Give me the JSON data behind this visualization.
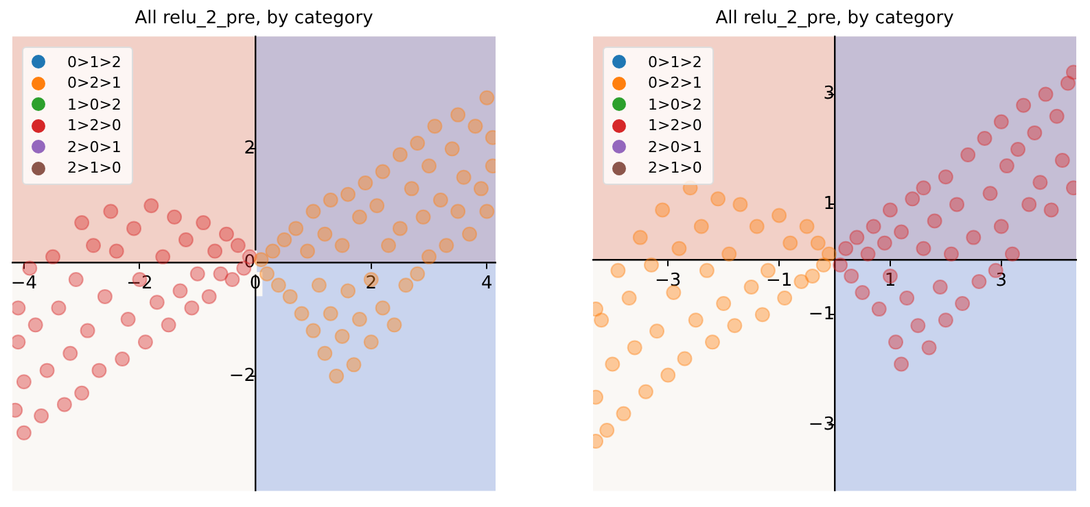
{
  "chart_data": [
    {
      "type": "scatter",
      "title": "All relu_2_pre, by category",
      "legend": "top left",
      "marker": "circle",
      "grid": false,
      "xlim": [
        -4.2,
        4.15
      ],
      "ylim": [
        -4.02,
        3.98
      ],
      "xticks": [
        {
          "value": -4,
          "label": "−4"
        },
        {
          "value": -2,
          "label": "−2"
        },
        0,
        2,
        4
      ],
      "yticks": [
        {
          "value": -2,
          "label": "−2"
        },
        0,
        2
      ],
      "bands": [
        {
          "axis": "y",
          "from": 0,
          "to": 3.98,
          "color": "#e8a090"
        },
        {
          "axis": "x",
          "from": 0,
          "to": 4.15,
          "color": "#8fa9e6"
        }
      ],
      "series": [
        {
          "name": "0>1>2",
          "color": "#1f77b4"
        },
        {
          "name": "0>2>1",
          "color": "#ff7f0e",
          "x": [
            0.1,
            0.2,
            0.3,
            0.4,
            0.5,
            0.6,
            0.7,
            0.8,
            0.9,
            1.0,
            1.0,
            1.1,
            1.2,
            1.2,
            1.3,
            1.3,
            1.4,
            1.5,
            1.5,
            1.6,
            1.6,
            1.7,
            1.8,
            1.8,
            1.9,
            2.0,
            2.0,
            2.1,
            2.2,
            2.2,
            2.3,
            2.4,
            2.5,
            2.5,
            2.6,
            2.7,
            2.8,
            2.8,
            2.9,
            3.0,
            3.0,
            3.1,
            3.2,
            3.3,
            3.4,
            3.5,
            3.5,
            3.6,
            3.7,
            3.8,
            3.9,
            4.0,
            4.0,
            4.1,
            4.1
          ],
          "values": [
            0.05,
            -0.2,
            0.2,
            -0.4,
            0.4,
            -0.6,
            0.6,
            -0.9,
            0.2,
            0.9,
            -1.2,
            -0.4,
            0.5,
            -1.6,
            1.1,
            -0.9,
            -2.0,
            0.3,
            -1.3,
            1.2,
            -0.5,
            -1.8,
            0.8,
            -1.0,
            1.4,
            -0.3,
            -1.4,
            1.0,
            1.6,
            -0.8,
            0.3,
            -1.1,
            1.9,
            0.6,
            -0.4,
            1.3,
            2.1,
            -0.2,
            0.8,
            1.7,
            0.1,
            2.4,
            1.1,
            0.3,
            2.0,
            2.6,
            0.9,
            1.5,
            0.5,
            2.4,
            1.3,
            2.9,
            0.9,
            2.2,
            1.7
          ]
        },
        {
          "name": "1>0>2",
          "color": "#2ca02c"
        },
        {
          "name": "1>2>0",
          "color": "#d62728",
          "x": [
            -0.1,
            -0.2,
            -0.3,
            -0.4,
            -0.5,
            -0.6,
            -0.7,
            -0.8,
            -0.9,
            -1.0,
            -1.1,
            -1.2,
            -1.3,
            -1.4,
            -1.5,
            -1.6,
            -1.7,
            -1.8,
            -1.9,
            -2.0,
            -2.1,
            -2.2,
            -2.3,
            -2.4,
            -2.5,
            -2.6,
            -2.7,
            -2.8,
            -2.9,
            -3.0,
            -3.0,
            -3.1,
            -3.2,
            -3.3,
            -3.4,
            -3.5,
            -3.6,
            -3.7,
            -3.8,
            -3.9,
            -4.0,
            -4.0,
            -4.1,
            -4.1,
            -4.15
          ],
          "values": [
            0.1,
            -0.1,
            0.3,
            -0.3,
            0.5,
            -0.2,
            0.2,
            -0.6,
            0.7,
            -0.2,
            -0.8,
            0.4,
            -0.5,
            0.8,
            -1.1,
            0.1,
            -0.7,
            1.0,
            -1.4,
            -0.3,
            0.6,
            -1.0,
            -1.7,
            0.2,
            0.9,
            -0.6,
            -1.9,
            0.3,
            -1.2,
            -2.3,
            0.7,
            -0.3,
            -1.6,
            -2.5,
            -0.8,
            0.1,
            -1.9,
            -2.7,
            -1.1,
            -0.1,
            -2.1,
            -3.0,
            -1.4,
            -0.8,
            -2.6
          ]
        },
        {
          "name": "2>0>1",
          "color": "#9467bd"
        },
        {
          "name": "2>1>0",
          "color": "#8c564b"
        }
      ]
    },
    {
      "type": "scatter",
      "title": "All relu_2_pre, by category",
      "legend": "top left",
      "marker": "circle",
      "grid": false,
      "xlim": [
        -4.35,
        4.35
      ],
      "ylim": [
        -4.2,
        4.05
      ],
      "xticks": [
        {
          "value": -3,
          "label": "−3"
        },
        {
          "value": -1,
          "label": "−1"
        },
        1,
        3
      ],
      "yticks": [
        {
          "value": -3,
          "label": "−3"
        },
        {
          "value": -1,
          "label": "−1"
        },
        1,
        3
      ],
      "bands": [
        {
          "axis": "y",
          "from": 0,
          "to": 4.05,
          "color": "#e8a090"
        },
        {
          "axis": "x",
          "from": 0,
          "to": 4.35,
          "color": "#8fa9e6"
        }
      ],
      "series": [
        {
          "name": "0>1>2",
          "color": "#1f77b4"
        },
        {
          "name": "0>2>1",
          "color": "#ff7f0e",
          "x": [
            -0.1,
            -0.2,
            -0.3,
            -0.4,
            -0.5,
            -0.6,
            -0.8,
            -0.9,
            -1.0,
            -1.2,
            -1.3,
            -1.4,
            -1.5,
            -1.7,
            -1.8,
            -1.9,
            -2.0,
            -2.1,
            -2.2,
            -2.3,
            -2.4,
            -2.5,
            -2.6,
            -2.7,
            -2.8,
            -2.9,
            -3.0,
            -3.1,
            -3.2,
            -3.3,
            -3.4,
            -3.5,
            -3.6,
            -3.7,
            -3.8,
            -3.9,
            -4.0,
            -4.1,
            -4.2,
            -4.3,
            -4.3,
            -4.3
          ],
          "values": [
            0.1,
            -0.1,
            0.3,
            -0.3,
            0.6,
            -0.4,
            0.3,
            -0.7,
            0.8,
            -0.2,
            -1.0,
            0.6,
            -0.5,
            1.0,
            -1.2,
            0.1,
            -0.8,
            1.1,
            -1.5,
            -0.2,
            0.6,
            -1.1,
            1.3,
            -1.8,
            0.2,
            -0.6,
            -2.1,
            0.9,
            -1.3,
            -0.1,
            -2.4,
            0.4,
            -1.6,
            -0.7,
            -2.8,
            -0.2,
            -1.9,
            -3.1,
            -1.1,
            -0.9,
            -2.5,
            -3.3
          ]
        },
        {
          "name": "1>0>2",
          "color": "#2ca02c"
        },
        {
          "name": "1>2>0",
          "color": "#d62728",
          "x": [
            0.1,
            0.2,
            0.3,
            0.4,
            0.5,
            0.6,
            0.7,
            0.8,
            0.9,
            1.0,
            1.0,
            1.1,
            1.2,
            1.2,
            1.3,
            1.4,
            1.5,
            1.6,
            1.6,
            1.7,
            1.8,
            1.9,
            2.0,
            2.0,
            2.1,
            2.2,
            2.3,
            2.4,
            2.5,
            2.6,
            2.7,
            2.8,
            2.9,
            3.0,
            3.0,
            3.1,
            3.2,
            3.3,
            3.4,
            3.5,
            3.6,
            3.7,
            3.8,
            3.9,
            4.0,
            4.1,
            4.2,
            4.3,
            4.3
          ],
          "values": [
            -0.1,
            0.2,
            -0.3,
            0.4,
            -0.6,
            0.1,
            0.6,
            -0.9,
            0.3,
            -0.3,
            0.9,
            -1.5,
            -1.9,
            0.5,
            -0.7,
            1.1,
            -1.2,
            0.2,
            1.3,
            -1.6,
            0.7,
            -0.5,
            1.5,
            -1.1,
            0.1,
            1.0,
            -0.8,
            1.9,
            0.4,
            -0.4,
            2.2,
            1.2,
            -0.2,
            0.6,
            2.5,
            1.7,
            0.1,
            2.0,
            2.8,
            1.0,
            2.3,
            1.4,
            3.0,
            0.9,
            2.6,
            1.8,
            3.2,
            3.4,
            1.3
          ]
        },
        {
          "name": "2>0>1",
          "color": "#9467bd"
        },
        {
          "name": "2>1>0",
          "color": "#8c564b"
        }
      ]
    }
  ]
}
